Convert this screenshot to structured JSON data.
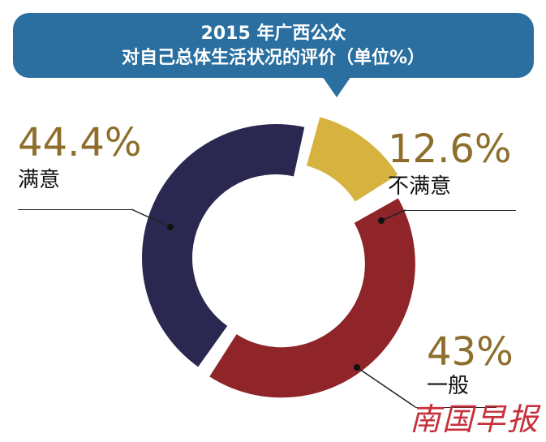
{
  "title": {
    "line1": "2015 年广西公众",
    "line2": "对自己总体生活状况的评价（单位%）"
  },
  "chart_data": {
    "type": "pie",
    "categories": [
      "满意",
      "不满意",
      "一般"
    ],
    "values": [
      44.4,
      12.6,
      43
    ],
    "value_labels": [
      "44.4%",
      "12.6%",
      "43%"
    ],
    "colors": [
      "#2a2850",
      "#d6b23f",
      "#8f2429"
    ],
    "donut": true,
    "title": "2015 年广西公众 对自己总体生活状况的评价（单位%）"
  },
  "watermark": "南国早报",
  "colors": {
    "title_bg": "#2a6fa0",
    "pct_text": "#8d6e2b",
    "watermark": "#c6303b"
  }
}
